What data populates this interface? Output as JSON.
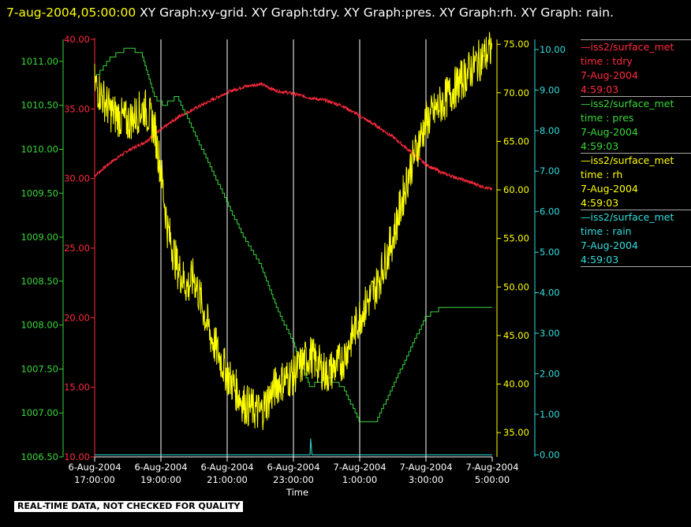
{
  "title": {
    "timestamp": "7-aug-2004,05:00:00",
    "graphs": "XY Graph:xy-grid.  XY Graph:tdry.  XY Graph:pres.  XY Graph:rh.  XY Graph: rain."
  },
  "footer": "REAL-TIME DATA, NOT CHECKED FOR QUALITY",
  "colors": {
    "tdry": "#ff2a3c",
    "pres": "#39d83a",
    "rh": "#ffff00",
    "rain": "#33dddd",
    "grid": "#ffffff",
    "bg": "#000000"
  },
  "legend": [
    {
      "dash": "—",
      "name": "iss2/surface_met",
      "var": "time : tdry",
      "date": "7-Aug-2004",
      "time": "4:59:03",
      "color": "#ff2a3c"
    },
    {
      "dash": "—",
      "name": "iss2/surface_met",
      "var": "time : pres",
      "date": "7-Aug-2004",
      "time": "4:59:03",
      "color": "#39d83a"
    },
    {
      "dash": "—",
      "name": "iss2/surface_met",
      "var": "time : rh",
      "date": "7-Aug-2004",
      "time": "4:59:03",
      "color": "#ffff00"
    },
    {
      "dash": "—",
      "name": "iss2/surface_met",
      "var": "time : rain",
      "date": "7-Aug-2004",
      "time": "4:59:03",
      "color": "#33dddd"
    }
  ],
  "chart_data": {
    "type": "line",
    "xlabel": "Time",
    "xlim": [
      17,
      29
    ],
    "x_ticks": [
      {
        "v": 17,
        "date": "6-Aug-2004",
        "time": "17:00:00"
      },
      {
        "v": 19,
        "date": "6-Aug-2004",
        "time": "19:00:00"
      },
      {
        "v": 21,
        "date": "6-Aug-2004",
        "time": "21:00:00"
      },
      {
        "v": 23,
        "date": "6-Aug-2004",
        "time": "23:00:00"
      },
      {
        "v": 25,
        "date": "7-Aug-2004",
        "time": "1:00:00"
      },
      {
        "v": 27,
        "date": "7-Aug-2004",
        "time": "3:00:00"
      },
      {
        "v": 29,
        "date": "7-Aug-2004",
        "time": "5:00:00"
      }
    ],
    "axes": {
      "tdry": {
        "ylim": [
          10,
          40
        ],
        "ticks": [
          "10.00",
          "15.00",
          "20.00",
          "25.00",
          "30.00",
          "35.00",
          "40.00"
        ]
      },
      "pres": {
        "ylim": [
          1006.5,
          1011.25
        ],
        "ticks": [
          "1006.50",
          "1007.00",
          "1007.50",
          "1008.00",
          "1008.50",
          "1009.00",
          "1009.50",
          "1010.00",
          "1010.50",
          "1011.00"
        ]
      },
      "rh": {
        "ylim": [
          32.5,
          75.5
        ],
        "ticks": [
          "35.00",
          "40.00",
          "45.00",
          "50.00",
          "55.00",
          "60.00",
          "65.00",
          "70.00",
          "75.00"
        ]
      },
      "rain": {
        "ylim": [
          -0.05,
          10.25
        ],
        "ticks": [
          "0.00",
          "1.00",
          "2.00",
          "3.00",
          "4.00",
          "5.00",
          "6.00",
          "7.00",
          "8.00",
          "9.00",
          "10.00"
        ]
      }
    },
    "series": [
      {
        "name": "tdry",
        "x": [
          17,
          17.5,
          18,
          18.5,
          19,
          19.5,
          20,
          20.5,
          21,
          21.5,
          22,
          22.5,
          23,
          23.5,
          24,
          24.5,
          25,
          25.5,
          26,
          26.5,
          27,
          27.5,
          28,
          28.5,
          29
        ],
        "values": [
          30.2,
          31.2,
          32.0,
          32.6,
          33.5,
          34.4,
          35.0,
          35.6,
          36.2,
          36.6,
          36.8,
          36.3,
          36.1,
          35.8,
          35.6,
          35.2,
          34.5,
          33.8,
          33.0,
          32.0,
          31.0,
          30.4,
          30.0,
          29.6,
          29.2
        ]
      },
      {
        "name": "pres",
        "x": [
          17,
          17.5,
          18,
          18.4,
          18.8,
          19.1,
          19.5,
          20,
          20.5,
          21,
          21.5,
          22,
          22.5,
          23,
          23.5,
          24,
          24.5,
          25,
          25.5,
          26,
          26.5,
          27,
          27.5,
          28,
          28.5,
          29
        ],
        "values": [
          1010.8,
          1011.05,
          1011.15,
          1011.1,
          1010.6,
          1010.5,
          1010.6,
          1010.2,
          1009.8,
          1009.4,
          1009.0,
          1008.7,
          1008.2,
          1007.8,
          1007.3,
          1007.4,
          1007.3,
          1006.9,
          1006.9,
          1007.3,
          1007.7,
          1008.1,
          1008.2,
          1008.2,
          1008.2,
          1008.2
        ]
      },
      {
        "name": "rh",
        "x": [
          17,
          17.5,
          18,
          18.5,
          18.8,
          19,
          19.2,
          19.5,
          19.8,
          20,
          20.5,
          21,
          21.5,
          22,
          22.5,
          23,
          23.5,
          24,
          24.5,
          25,
          25.5,
          26,
          26.5,
          27,
          27.5,
          28,
          28.5,
          29
        ],
        "values": [
          71.0,
          68.0,
          67.0,
          68.5,
          66.5,
          62.0,
          56.0,
          52.0,
          50.0,
          51.0,
          45.0,
          41.0,
          38.0,
          37.0,
          40.0,
          41.0,
          43.0,
          41.0,
          42.5,
          47.0,
          50.0,
          55.0,
          62.0,
          67.0,
          69.0,
          71.0,
          73.0,
          74.5
        ]
      },
      {
        "name": "rain",
        "x": [
          17,
          23.5,
          23.52,
          23.56,
          23.6,
          29
        ],
        "values": [
          0,
          0,
          0.4,
          0,
          0,
          0
        ]
      }
    ]
  }
}
